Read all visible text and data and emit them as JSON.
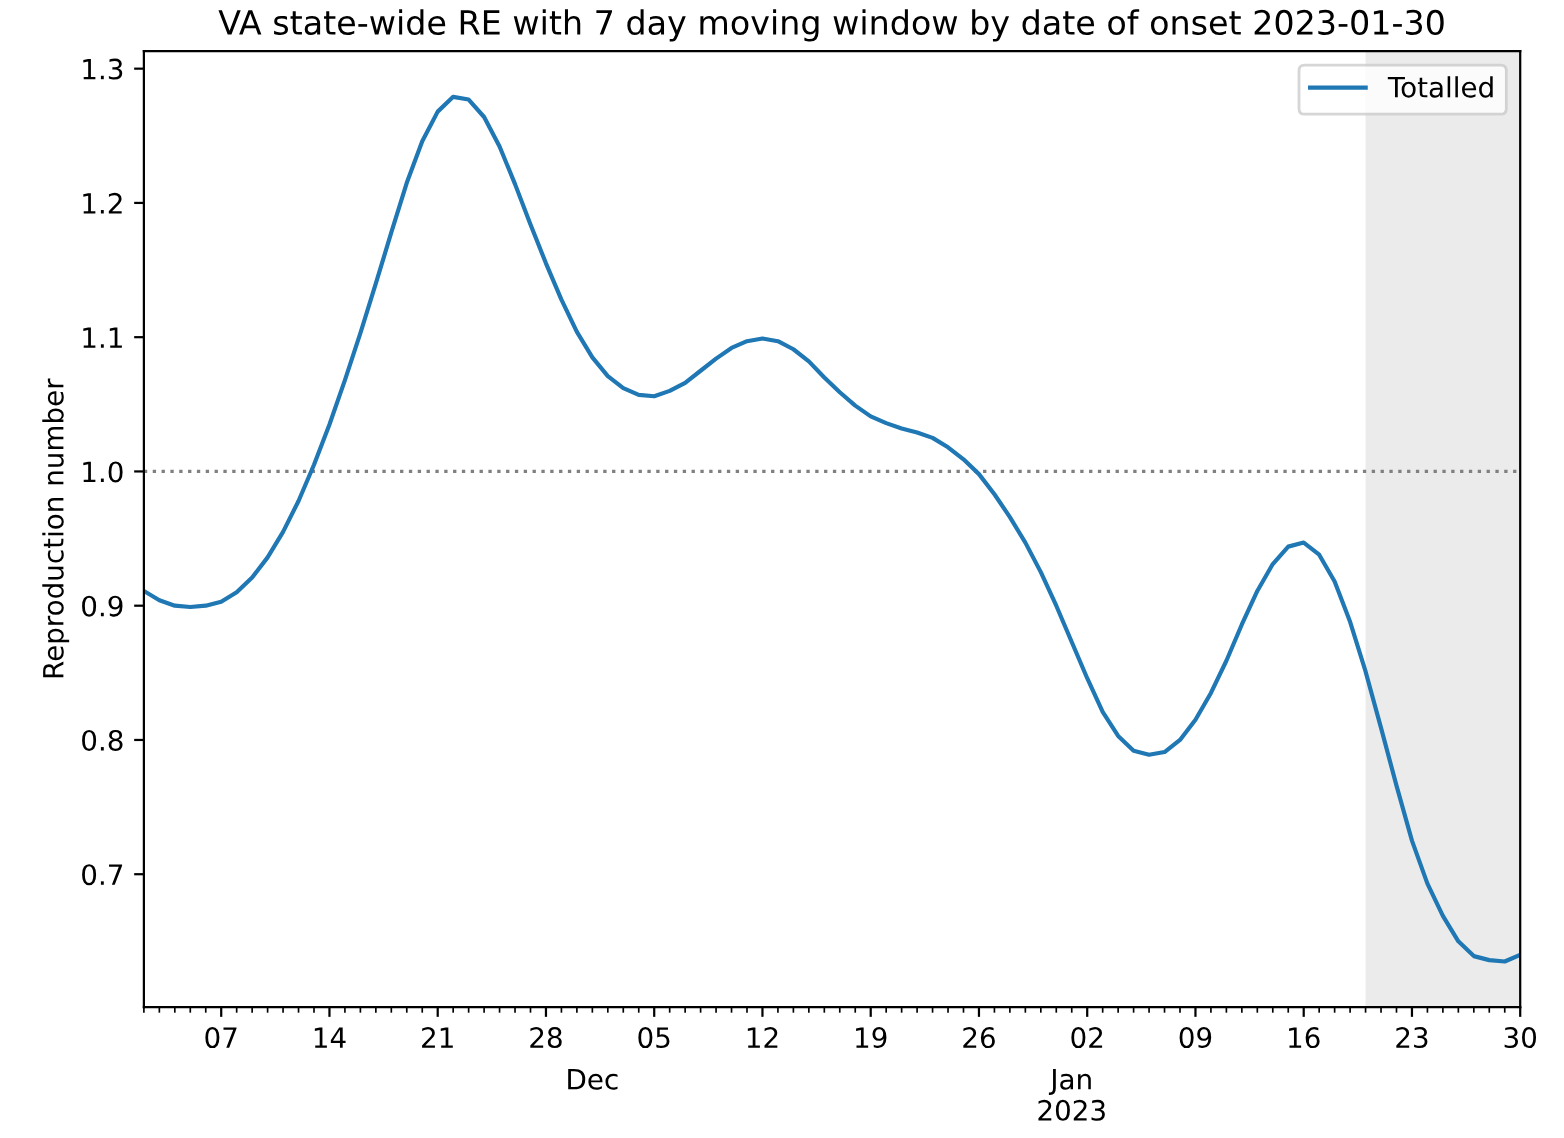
{
  "chart_data": {
    "type": "line",
    "title": "VA state-wide RE with 7 day moving window by date of onset 2023-01-30",
    "ylabel": "Reproduction number",
    "x": [
      "2022-11-02",
      "2022-11-03",
      "2022-11-04",
      "2022-11-05",
      "2022-11-06",
      "2022-11-07",
      "2022-11-08",
      "2022-11-09",
      "2022-11-10",
      "2022-11-11",
      "2022-11-12",
      "2022-11-13",
      "2022-11-14",
      "2022-11-15",
      "2022-11-16",
      "2022-11-17",
      "2022-11-18",
      "2022-11-19",
      "2022-11-20",
      "2022-11-21",
      "2022-11-22",
      "2022-11-23",
      "2022-11-24",
      "2022-11-25",
      "2022-11-26",
      "2022-11-27",
      "2022-11-28",
      "2022-11-29",
      "2022-11-30",
      "2022-12-01",
      "2022-12-02",
      "2022-12-03",
      "2022-12-04",
      "2022-12-05",
      "2022-12-06",
      "2022-12-07",
      "2022-12-08",
      "2022-12-09",
      "2022-12-10",
      "2022-12-11",
      "2022-12-12",
      "2022-12-13",
      "2022-12-14",
      "2022-12-15",
      "2022-12-16",
      "2022-12-17",
      "2022-12-18",
      "2022-12-19",
      "2022-12-20",
      "2022-12-21",
      "2022-12-22",
      "2022-12-23",
      "2022-12-24",
      "2022-12-25",
      "2022-12-26",
      "2022-12-27",
      "2022-12-28",
      "2022-12-29",
      "2022-12-30",
      "2022-12-31",
      "2023-01-01",
      "2023-01-02",
      "2023-01-03",
      "2023-01-04",
      "2023-01-05",
      "2023-01-06",
      "2023-01-07",
      "2023-01-08",
      "2023-01-09",
      "2023-01-10",
      "2023-01-11",
      "2023-01-12",
      "2023-01-13",
      "2023-01-14",
      "2023-01-15",
      "2023-01-16",
      "2023-01-17",
      "2023-01-18",
      "2023-01-19",
      "2023-01-20",
      "2023-01-21",
      "2023-01-22",
      "2023-01-23",
      "2023-01-24",
      "2023-01-25",
      "2023-01-26",
      "2023-01-27",
      "2023-01-28",
      "2023-01-29",
      "2023-01-30"
    ],
    "series": [
      {
        "name": "Totalled",
        "color": "#1f77b4",
        "values": [
          0.911,
          0.904,
          0.9,
          0.899,
          0.9,
          0.903,
          0.91,
          0.921,
          0.936,
          0.955,
          0.978,
          1.005,
          1.035,
          1.068,
          1.103,
          1.14,
          1.178,
          1.215,
          1.246,
          1.268,
          1.279,
          1.277,
          1.264,
          1.242,
          1.214,
          1.184,
          1.155,
          1.128,
          1.104,
          1.085,
          1.071,
          1.062,
          1.057,
          1.056,
          1.06,
          1.066,
          1.075,
          1.084,
          1.092,
          1.097,
          1.099,
          1.097,
          1.091,
          1.082,
          1.07,
          1.059,
          1.049,
          1.041,
          1.036,
          1.032,
          1.029,
          1.025,
          1.018,
          1.009,
          0.998,
          0.983,
          0.966,
          0.947,
          0.925,
          0.9,
          0.873,
          0.846,
          0.821,
          0.803,
          0.792,
          0.789,
          0.791,
          0.8,
          0.815,
          0.835,
          0.859,
          0.886,
          0.911,
          0.931,
          0.944,
          0.947,
          0.938,
          0.918,
          0.888,
          0.851,
          0.809,
          0.766,
          0.725,
          0.693,
          0.669,
          0.65,
          0.639,
          0.636,
          0.635,
          0.64
        ]
      }
    ],
    "xlim": [
      "2022-11-02",
      "2023-01-30"
    ],
    "xticks": [
      {
        "value": "2022-11-07",
        "label": "07"
      },
      {
        "value": "2022-11-14",
        "label": "14"
      },
      {
        "value": "2022-11-21",
        "label": "21"
      },
      {
        "value": "2022-11-28",
        "label": "28"
      },
      {
        "value": "2022-12-05",
        "label": "05"
      },
      {
        "value": "2022-12-12",
        "label": "12"
      },
      {
        "value": "2022-12-19",
        "label": "19"
      },
      {
        "value": "2022-12-26",
        "label": "26"
      },
      {
        "value": "2023-01-02",
        "label": "02"
      },
      {
        "value": "2023-01-09",
        "label": "09"
      },
      {
        "value": "2023-01-16",
        "label": "16"
      },
      {
        "value": "2023-01-23",
        "label": "23"
      },
      {
        "value": "2023-01-30",
        "label": "30"
      }
    ],
    "x2lim": [
      "2022-11-02",
      "2023-01-30"
    ],
    "x2ticks": [
      {
        "value": "2022-12-01",
        "label": "Dec"
      },
      {
        "value": "2023-01-01",
        "label": "Jan\n2023"
      }
    ],
    "ylim": [
      0.601,
      1.313
    ],
    "yticks": [
      0.7,
      0.8,
      0.9,
      {
        "value": 1,
        "label": "1.0"
      },
      1.1,
      1.2,
      1.3
    ],
    "ref_lines": [
      {
        "axis": "y",
        "value": 1.0,
        "color": "#808080",
        "line_style": "dotted"
      }
    ],
    "bands": [
      {
        "axis": "x",
        "from": "2023-01-20",
        "to": "2023-01-30",
        "color": "#ebebeb"
      }
    ],
    "grid": false,
    "legend": "top right",
    "marker": "none",
    "line_style": "solid"
  }
}
